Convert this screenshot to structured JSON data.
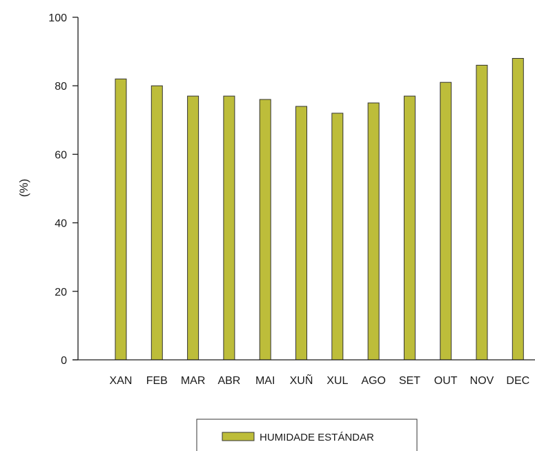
{
  "chart_data": {
    "type": "bar",
    "categories": [
      "XAN",
      "FEB",
      "MAR",
      "ABR",
      "MAI",
      "XUÑ",
      "XUL",
      "AGO",
      "SET",
      "OUT",
      "NOV",
      "DEC"
    ],
    "series": [
      {
        "name": "HUMIDADE ESTÁNDAR",
        "values": [
          82,
          80,
          77,
          77,
          76,
          74,
          72,
          75,
          77,
          81,
          86,
          88
        ],
        "color": "#bdbd3a"
      }
    ],
    "title": "",
    "xlabel": "",
    "ylabel": "(%)",
    "ylim": [
      0,
      100
    ],
    "yticks": [
      "0",
      "20",
      "40",
      "60",
      "80",
      "100"
    ],
    "grid": false,
    "legend_position": "bottom-center"
  }
}
